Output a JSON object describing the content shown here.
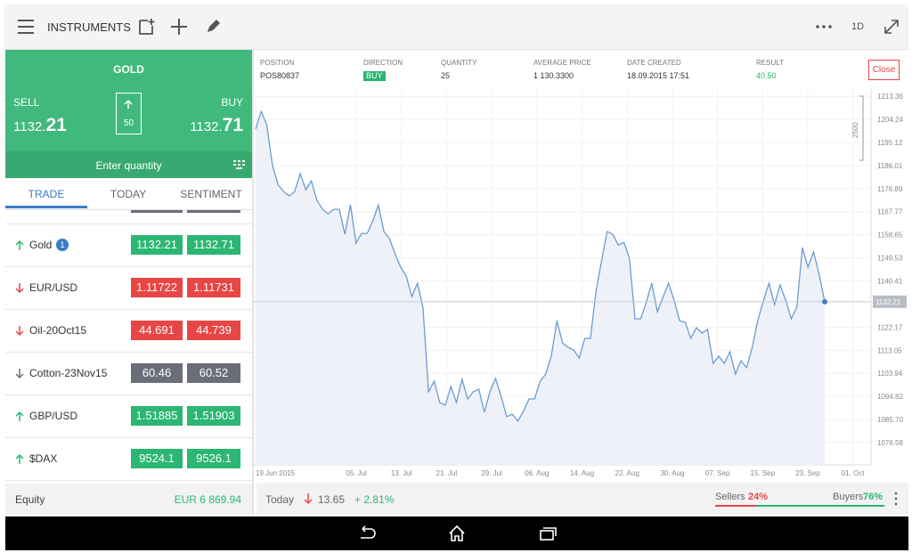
{
  "toolbar": {
    "title": "INSTRUMENTS",
    "timeframe": "1D"
  },
  "ticket": {
    "instrument": "GOLD",
    "sell_label": "SELL",
    "buy_label": "BUY",
    "sell_price_small": "1132.",
    "sell_price_large": "21",
    "buy_price_small": "1132.",
    "buy_price_large": "71",
    "spread": "50",
    "quantity_placeholder": "Enter quantity"
  },
  "tabs": [
    "TRADE",
    "TODAY",
    "SENTIMENT"
  ],
  "watchlist": [
    {
      "name": "Gold",
      "badge": "1",
      "direction": "up",
      "sell": "1132.21",
      "buy": "1132.71",
      "color": "#2bb673"
    },
    {
      "name": "EUR/USD",
      "direction": "down",
      "sell": "1.11722",
      "buy": "1.11731",
      "color": "#e84545"
    },
    {
      "name": "Oil-20Oct15",
      "direction": "down",
      "sell": "44.691",
      "buy": "44.739",
      "color": "#e84545"
    },
    {
      "name": "Cotton-23Nov15",
      "direction": "down",
      "sell": "60.46",
      "buy": "60.52",
      "color": "#6b6e78"
    },
    {
      "name": "GBP/USD",
      "direction": "up",
      "sell": "1.51885",
      "buy": "1.51903",
      "color": "#2bb673"
    },
    {
      "name": "$DAX",
      "direction": "up",
      "sell": "9524.1",
      "buy": "9526.1",
      "color": "#2bb673"
    }
  ],
  "equity": {
    "label": "Equity",
    "value": "EUR 6 869.94"
  },
  "position": {
    "headers": [
      "POSITION",
      "DIRECTION",
      "QUANTITY",
      "AVERAGE PRICE",
      "DATE CREATED",
      "RESULT"
    ],
    "values": [
      "POS80837",
      "BUY",
      "25",
      "1 130.3300",
      "18.09.2015 17:51",
      "40.50"
    ],
    "close_label": "Close"
  },
  "chart_data": {
    "type": "line",
    "color": "#6b9bd2",
    "grid": true,
    "x_labels": [
      "19 Jun 2015",
      "05. Jul",
      "13. Jul",
      "21. Jul",
      "29. Jul",
      "06. Aug",
      "14. Aug",
      "22. Aug",
      "30. Aug",
      "07. Sep",
      "15. Sep",
      "23. Sep",
      "01. Oct"
    ],
    "values": [
      1200.35,
      1207.38,
      1202.11,
      1186.29,
      1178.55,
      1175.74,
      1173.98,
      1175.74,
      1182.77,
      1176.44,
      1179.96,
      1172.22,
      1168.7,
      1166.95,
      1168.7,
      1168.7,
      1158.86,
      1170.46,
      1155.34,
      1159.21,
      1159.21,
      1164.13,
      1170.46,
      1159.91,
      1157.1,
      1151.12,
      1145.85,
      1142.33,
      1134.25,
      1139.52,
      1130.03,
      1096.62,
      1100.84,
      1092.4,
      1091.35,
      1098.73,
      1092.4,
      1101.55,
      1093.81,
      1096.62,
      1097.68,
      1088.54,
      1096.62,
      1101.9,
      1094.86,
      1086.78,
      1087.83,
      1085.02,
      1088.89,
      1093.81,
      1093.81,
      1100.84,
      1103.66,
      1110.69,
      1124.75,
      1115.96,
      1114.2,
      1113.15,
      1109.98,
      1117.72,
      1117.72,
      1136.0,
      1148.31,
      1159.91,
      1158.86,
      1154.64,
      1155.69,
      1149.37,
      1125.46,
      1125.46,
      1131.78,
      1139.52,
      1128.27,
      1133.89,
      1139.52,
      1132.84,
      1124.75,
      1124.05,
      1117.72,
      1121.94,
      1119.83,
      1121.24,
      1107.87,
      1110.69,
      1107.87,
      1112.45,
      1103.66,
      1108.93,
      1106.12,
      1114.2,
      1124.75,
      1132.49,
      1139.52,
      1131.08,
      1138.82,
      1132.84,
      1125.46,
      1130.03,
      1153.59,
      1145.85,
      1151.83,
      1143.04,
      1132.21
    ],
    "ylim": [
      1067.8,
      1216.2
    ],
    "yticks": [
      1213.36,
      1204.24,
      1195.12,
      1186.01,
      1176.89,
      1167.77,
      1158.65,
      1149.53,
      1140.41,
      1122.17,
      1113.05,
      1103.94,
      1094.82,
      {
        "value": 1085.7,
        "label": "1085.70"
      },
      1076.58
    ],
    "current_price": 1132.21,
    "scale_label": "2500"
  },
  "summary": {
    "label": "Today",
    "change": "13.65",
    "change_percent": "+ 2.81%"
  },
  "sentiment": {
    "labels": [
      "Sellers",
      "Buyers"
    ],
    "values": [
      24,
      76
    ],
    "value_labels": [
      "24%",
      "76%"
    ],
    "colors": [
      "#e84545",
      "#2bb673"
    ]
  }
}
